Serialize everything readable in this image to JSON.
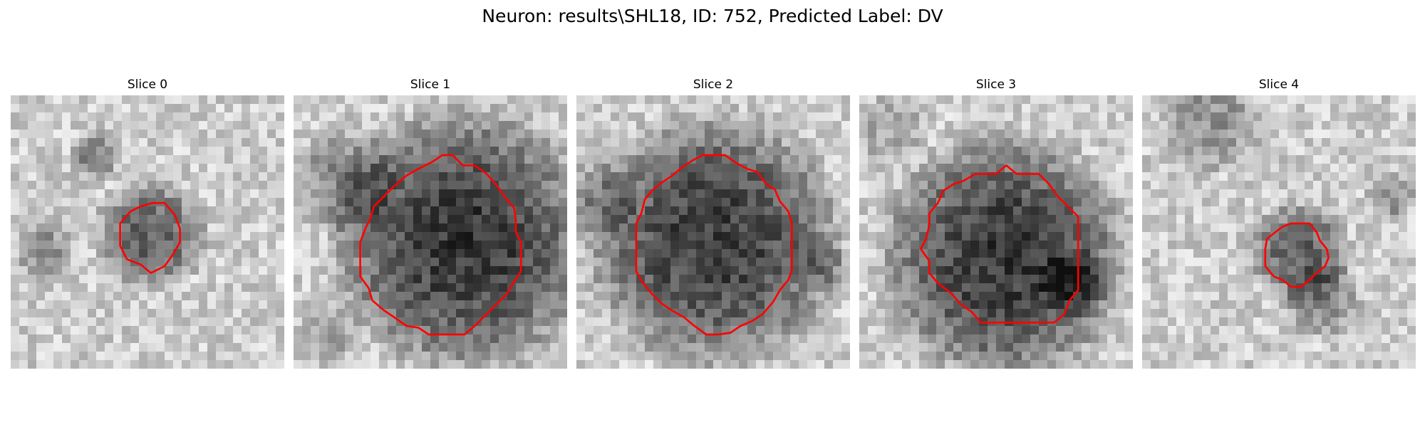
{
  "figure": {
    "title": "Neuron: results\\SHL18, ID: 752, Predicted Label: DV"
  },
  "colors": {
    "contour": "#ff0000",
    "background": "#ffffff"
  },
  "panels": [
    {
      "label": "Slice 0",
      "blobs": [
        {
          "cx": 8.2,
          "cy": 8.2,
          "r": 2.6,
          "depth": 110
        },
        {
          "cx": 5.0,
          "cy": 3.5,
          "r": 1.2,
          "depth": 80
        },
        {
          "cx": 2.0,
          "cy": 9.0,
          "r": 1.5,
          "depth": 60
        }
      ],
      "contour": [
        [
          8.3,
          6.3
        ],
        [
          9.0,
          6.3
        ],
        [
          9.6,
          7.0
        ],
        [
          9.9,
          7.8
        ],
        [
          9.9,
          8.6
        ],
        [
          9.5,
          9.3
        ],
        [
          9.0,
          10.0
        ],
        [
          8.2,
          10.4
        ],
        [
          7.6,
          9.9
        ],
        [
          6.8,
          9.6
        ],
        [
          6.4,
          8.8
        ],
        [
          6.4,
          7.5
        ],
        [
          7.0,
          6.8
        ],
        [
          7.6,
          6.5
        ]
      ]
    },
    {
      "label": "Slice 1",
      "blobs": [
        {
          "cx": 10.0,
          "cy": 8.5,
          "r": 6.2,
          "depth": 150
        },
        {
          "cx": 3.0,
          "cy": 5.0,
          "r": 2.5,
          "depth": 70
        },
        {
          "cx": 2.0,
          "cy": 14.0,
          "r": 1.5,
          "depth": 50
        }
      ],
      "contour": [
        [
          7.3,
          4.3
        ],
        [
          8.1,
          3.9
        ],
        [
          8.7,
          3.5
        ],
        [
          9.3,
          3.5
        ],
        [
          9.9,
          4.1
        ],
        [
          10.6,
          4.1
        ],
        [
          11.3,
          4.6
        ],
        [
          11.9,
          5.3
        ],
        [
          12.4,
          6.0
        ],
        [
          12.9,
          6.6
        ],
        [
          13.0,
          7.3
        ],
        [
          13.0,
          8.0
        ],
        [
          13.3,
          8.6
        ],
        [
          13.3,
          9.4
        ],
        [
          13.3,
          10.3
        ],
        [
          12.9,
          10.9
        ],
        [
          12.5,
          11.6
        ],
        [
          11.9,
          12.2
        ],
        [
          11.3,
          12.8
        ],
        [
          10.6,
          13.5
        ],
        [
          10.0,
          14.0
        ],
        [
          9.3,
          14.0
        ],
        [
          8.6,
          14.0
        ],
        [
          7.9,
          14.0
        ],
        [
          7.3,
          13.6
        ],
        [
          6.6,
          13.5
        ],
        [
          5.9,
          13.0
        ],
        [
          5.3,
          12.6
        ],
        [
          4.6,
          12.0
        ],
        [
          4.4,
          11.3
        ],
        [
          3.9,
          10.6
        ],
        [
          3.9,
          9.9
        ],
        [
          3.9,
          9.2
        ],
        [
          3.9,
          8.6
        ],
        [
          4.2,
          7.8
        ],
        [
          4.5,
          7.2
        ],
        [
          4.7,
          6.5
        ],
        [
          5.3,
          5.9
        ],
        [
          5.9,
          5.3
        ],
        [
          6.6,
          4.7
        ]
      ]
    },
    {
      "label": "Slice 2",
      "blobs": [
        {
          "cx": 8.0,
          "cy": 8.5,
          "r": 6.0,
          "depth": 145
        },
        {
          "cx": 1.0,
          "cy": 6.0,
          "r": 2.0,
          "depth": 55
        },
        {
          "cx": 14.5,
          "cy": 10.0,
          "r": 1.3,
          "depth": 45
        }
      ],
      "contour": [
        [
          7.4,
          3.5
        ],
        [
          8.1,
          3.5
        ],
        [
          8.7,
          3.5
        ],
        [
          9.4,
          4.0
        ],
        [
          10.0,
          4.3
        ],
        [
          10.6,
          4.5
        ],
        [
          11.1,
          5.2
        ],
        [
          11.6,
          5.5
        ],
        [
          11.9,
          6.2
        ],
        [
          12.4,
          6.8
        ],
        [
          12.6,
          7.5
        ],
        [
          12.6,
          8.2
        ],
        [
          12.6,
          8.8
        ],
        [
          12.6,
          9.5
        ],
        [
          12.6,
          10.2
        ],
        [
          12.4,
          10.8
        ],
        [
          11.9,
          11.4
        ],
        [
          11.5,
          12.1
        ],
        [
          10.9,
          12.8
        ],
        [
          10.3,
          13.2
        ],
        [
          9.6,
          13.5
        ],
        [
          9.0,
          13.9
        ],
        [
          8.3,
          14.0
        ],
        [
          7.6,
          14.0
        ],
        [
          6.9,
          13.5
        ],
        [
          6.3,
          13.0
        ],
        [
          5.6,
          12.6
        ],
        [
          5.0,
          12.2
        ],
        [
          4.4,
          11.6
        ],
        [
          3.9,
          11.0
        ],
        [
          3.5,
          10.3
        ],
        [
          3.5,
          9.6
        ],
        [
          3.5,
          8.9
        ],
        [
          3.5,
          8.2
        ],
        [
          3.5,
          7.5
        ],
        [
          3.8,
          6.9
        ],
        [
          4.0,
          6.1
        ],
        [
          4.5,
          5.5
        ],
        [
          5.0,
          5.1
        ],
        [
          5.6,
          4.7
        ],
        [
          6.2,
          4.2
        ],
        [
          6.8,
          3.8
        ]
      ]
    },
    {
      "label": "Slice 3",
      "blobs": [
        {
          "cx": 8.5,
          "cy": 9.5,
          "r": 5.8,
          "depth": 150
        },
        {
          "cx": 12.5,
          "cy": 11.0,
          "r": 1.6,
          "depth": 70
        },
        {
          "cx": 2.0,
          "cy": 2.0,
          "r": 1.8,
          "depth": 40
        }
      ],
      "contour": [
        [
          8.0,
          4.6
        ],
        [
          8.6,
          4.1
        ],
        [
          9.2,
          4.6
        ],
        [
          9.9,
          4.6
        ],
        [
          10.5,
          4.6
        ],
        [
          11.1,
          5.2
        ],
        [
          11.6,
          5.9
        ],
        [
          12.2,
          6.5
        ],
        [
          12.8,
          7.1
        ],
        [
          12.8,
          7.9
        ],
        [
          12.8,
          8.6
        ],
        [
          12.8,
          9.3
        ],
        [
          12.8,
          10.0
        ],
        [
          12.8,
          10.7
        ],
        [
          12.8,
          11.4
        ],
        [
          12.3,
          12.0
        ],
        [
          12.0,
          12.8
        ],
        [
          11.4,
          13.3
        ],
        [
          10.6,
          13.3
        ],
        [
          9.9,
          13.3
        ],
        [
          9.2,
          13.3
        ],
        [
          8.5,
          13.3
        ],
        [
          7.8,
          13.3
        ],
        [
          7.1,
          13.3
        ],
        [
          6.6,
          12.7
        ],
        [
          5.9,
          12.2
        ],
        [
          5.4,
          11.6
        ],
        [
          4.6,
          11.0
        ],
        [
          4.1,
          10.4
        ],
        [
          4.1,
          9.7
        ],
        [
          3.6,
          9.0
        ],
        [
          3.9,
          8.4
        ],
        [
          4.1,
          7.6
        ],
        [
          4.1,
          6.9
        ],
        [
          4.6,
          6.3
        ],
        [
          4.9,
          5.6
        ],
        [
          5.5,
          5.2
        ],
        [
          6.1,
          5.0
        ],
        [
          6.8,
          4.6
        ],
        [
          7.5,
          4.6
        ]
      ]
    },
    {
      "label": "Slice 4",
      "blobs": [
        {
          "cx": 9.2,
          "cy": 9.2,
          "r": 2.4,
          "depth": 110
        },
        {
          "cx": 10.5,
          "cy": 12.0,
          "r": 1.8,
          "depth": 70
        },
        {
          "cx": 4.0,
          "cy": 1.5,
          "r": 2.5,
          "depth": 60
        },
        {
          "cx": 14.5,
          "cy": 6.0,
          "r": 1.2,
          "depth": 60
        }
      ],
      "contour": [
        [
          8.2,
          7.7
        ],
        [
          8.7,
          7.5
        ],
        [
          9.3,
          7.5
        ],
        [
          9.8,
          7.5
        ],
        [
          10.2,
          8.0
        ],
        [
          10.4,
          8.5
        ],
        [
          10.8,
          9.0
        ],
        [
          10.9,
          9.5
        ],
        [
          10.7,
          10.0
        ],
        [
          10.2,
          10.4
        ],
        [
          9.8,
          10.8
        ],
        [
          9.3,
          11.2
        ],
        [
          8.7,
          11.2
        ],
        [
          8.2,
          10.8
        ],
        [
          7.7,
          10.6
        ],
        [
          7.2,
          10.0
        ],
        [
          7.2,
          9.5
        ],
        [
          7.2,
          9.0
        ],
        [
          7.3,
          8.4
        ],
        [
          7.8,
          8.0
        ]
      ]
    }
  ]
}
